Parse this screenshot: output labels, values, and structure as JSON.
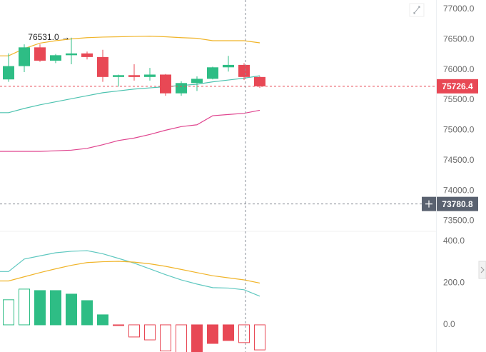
{
  "chart_data": [
    {
      "type": "candlestick",
      "open": [
        75840,
        76060,
        76370,
        76150,
        76240,
        76270,
        76210,
        75880,
        75910,
        75880,
        75920,
        75610,
        75780,
        75850,
        76040,
        76080,
        75880
      ],
      "high": [
        76270,
        76420,
        76420,
        76260,
        76531,
        76300,
        76330,
        75920,
        76090,
        76030,
        75930,
        75810,
        75890,
        76050,
        76230,
        76110,
        75890
      ],
      "low": [
        75800,
        75960,
        76130,
        76110,
        76090,
        76170,
        75800,
        75720,
        75820,
        75820,
        75570,
        75570,
        75650,
        75840,
        75970,
        75830,
        75700
      ],
      "close": [
        76060,
        76370,
        76150,
        76240,
        76270,
        76210,
        75880,
        75910,
        75880,
        75920,
        75610,
        75780,
        75850,
        76040,
        76080,
        75880,
        75726.4
      ],
      "up_color": "#2ebd85",
      "down_color": "#e84855",
      "max_label": "76531.0 →",
      "lines": [
        {
          "color": "#f0b429",
          "values": [
            76230,
            76350,
            76440,
            76480,
            76510,
            76530,
            76540,
            76545,
            76550,
            76555,
            76545,
            76530,
            76520,
            76480,
            76480,
            76480,
            76445
          ]
        },
        {
          "color": "#4ec3b0",
          "values": [
            75290,
            75360,
            75420,
            75470,
            75520,
            75570,
            75620,
            75650,
            75680,
            75700,
            75720,
            75740,
            75760,
            75800,
            75830,
            75860,
            75900
          ]
        },
        {
          "color": "#e0458f",
          "values": [
            74650,
            74650,
            74650,
            74660,
            74670,
            74700,
            74760,
            74830,
            74870,
            74930,
            75000,
            75060,
            75090,
            75240,
            75260,
            75280,
            75330
          ]
        }
      ],
      "crosshair": {
        "price": 73780.8,
        "index": 15
      },
      "ylim": [
        73340,
        77153
      ],
      "yticks": [
        {
          "value": 77000,
          "label": "77000.0"
        },
        {
          "value": 76500,
          "label": "76500.0"
        },
        {
          "value": 76000,
          "label": "76000.0"
        },
        {
          "value": 75500,
          "label": "75500.0"
        },
        {
          "value": 75000,
          "label": "75000.0"
        },
        {
          "value": 74500,
          "label": "74500.0"
        },
        {
          "value": 74000,
          "label": "74000.0"
        },
        {
          "value": 73500,
          "label": "73500.0"
        }
      ]
    },
    {
      "type": "macd",
      "histogram": [
        120,
        171,
        164,
        164,
        147,
        116,
        48,
        -3,
        -58,
        -72,
        -125,
        -135,
        -132,
        -89,
        -75,
        -85,
        -120
      ],
      "up_color": "#2ebd85",
      "down_color": "#e84855",
      "lines": [
        {
          "color": "#5fc8c0",
          "values": [
            255,
            315,
            330,
            345,
            352,
            355,
            340,
            318,
            295,
            268,
            240,
            215,
            195,
            178,
            176,
            168,
            137
          ]
        },
        {
          "color": "#f0b429",
          "values": [
            210,
            230,
            250,
            268,
            285,
            298,
            302,
            304,
            300,
            292,
            280,
            265,
            250,
            235,
            225,
            215,
            200
          ]
        }
      ],
      "ylim": [
        -130,
        444
      ],
      "yticks": [
        {
          "value": 400,
          "label": "400.0"
        },
        {
          "value": 200,
          "label": "200.0"
        },
        {
          "value": 0,
          "label": "0.0"
        }
      ]
    }
  ]
}
